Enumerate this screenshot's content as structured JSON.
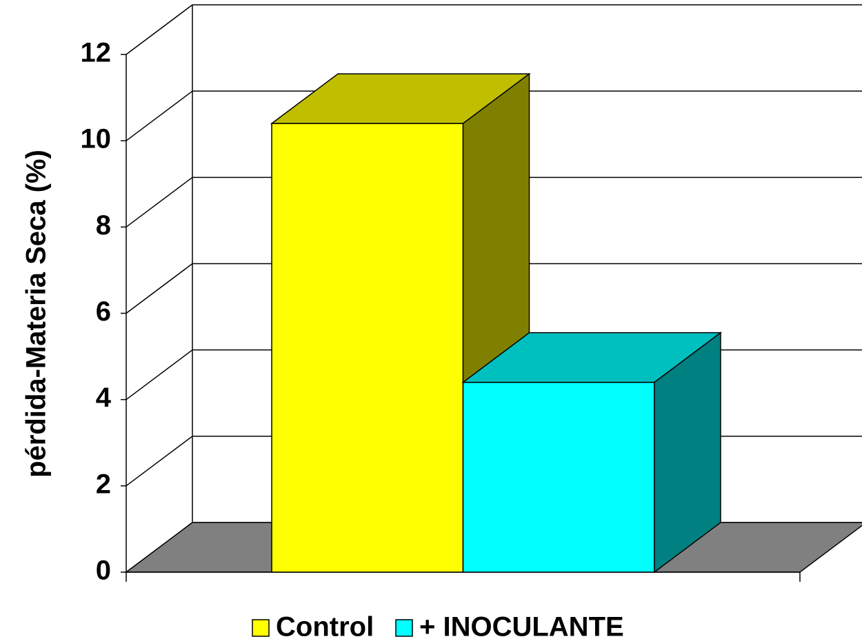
{
  "chart_data": {
    "type": "bar3d",
    "y_label": "pérdida-Materia Seca (%)",
    "categories": [
      null
    ],
    "series": [
      {
        "name": "Control",
        "color": "#ffff00",
        "values": [
          10.4
        ]
      },
      {
        "name": "+ INOCULANTE",
        "color": "#00ffff",
        "values": [
          4.4
        ]
      }
    ],
    "ylim": [
      0,
      12
    ],
    "yticks": [
      0,
      2,
      4,
      6,
      8,
      10,
      12
    ],
    "grid": true,
    "legend": "bottom"
  }
}
